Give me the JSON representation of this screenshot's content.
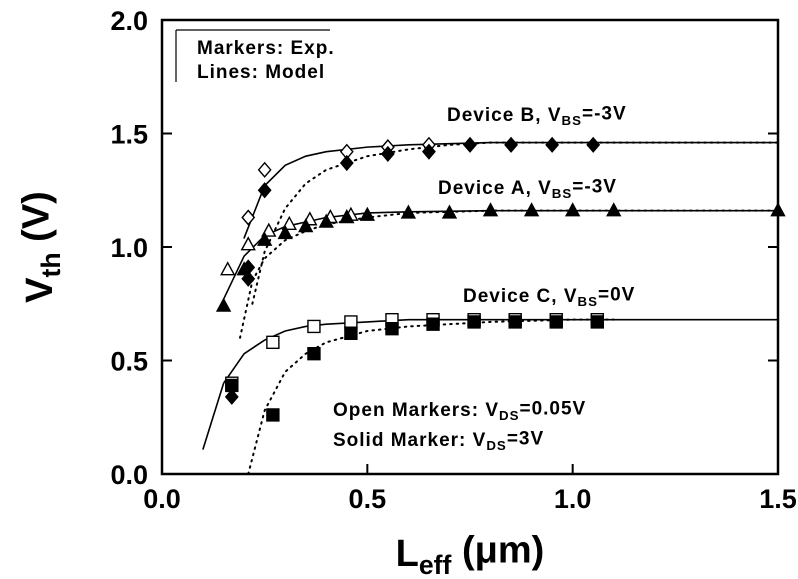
{
  "chart_data": {
    "type": "scatter",
    "xlabel": {
      "text": "L",
      "sub": "eff",
      "rest": " (μm)"
    },
    "ylabel": {
      "text": "V",
      "sub": "th",
      "rest": " (V)"
    },
    "xlim": [
      0,
      1.5
    ],
    "ylim": [
      0,
      2
    ],
    "xticks": [
      {
        "value": 0,
        "label": "0.0"
      },
      0.5,
      {
        "value": 1,
        "label": "1.0"
      },
      1.5
    ],
    "yticks": [
      {
        "value": 0,
        "label": "0.0"
      },
      0.5,
      {
        "value": 1,
        "label": "1.0"
      },
      1.5,
      {
        "value": 2,
        "label": "2.0"
      }
    ],
    "annotations": [
      {
        "text": "Markers: Exp."
      },
      {
        "text": "Lines: Model"
      },
      {
        "text": "Device B, V",
        "sub": "BS",
        "rest": "=-3V"
      },
      {
        "text": "Device A, V",
        "sub": "BS",
        "rest": "=-3V"
      },
      {
        "text": "Device C, V",
        "sub": "BS",
        "rest": "=0V"
      },
      {
        "text": "Open Markers: V",
        "sub": "DS",
        "rest": "=0.05V"
      },
      {
        "text": "Solid Marker: V",
        "sub": "DS",
        "rest": "=3V"
      }
    ],
    "series": [
      {
        "color": "#000",
        "marker": "diamond",
        "filled": false,
        "x": [
          0.21,
          0.25,
          0.45,
          0.55,
          0.65
        ],
        "values": [
          1.13,
          1.34,
          1.42,
          1.44,
          1.45
        ]
      },
      {
        "color": "#000",
        "marker": "diamond",
        "filled": true,
        "x": [
          0.17,
          0.21,
          0.21,
          0.25,
          0.45,
          0.55,
          0.65,
          0.75,
          0.85,
          0.95,
          1.05
        ],
        "values": [
          0.34,
          0.91,
          0.86,
          1.25,
          1.37,
          1.41,
          1.42,
          1.45,
          1.45,
          1.45,
          1.45
        ]
      },
      {
        "color": "#000",
        "marker": "triangle",
        "filled": false,
        "x": [
          0.16,
          0.21,
          0.26,
          0.31,
          0.36,
          0.41,
          0.46
        ],
        "values": [
          0.9,
          1.01,
          1.07,
          1.1,
          1.12,
          1.13,
          1.14
        ]
      },
      {
        "color": "#000",
        "marker": "triangle",
        "filled": true,
        "x": [
          0.15,
          0.2,
          0.25,
          0.3,
          0.35,
          0.4,
          0.45,
          0.5,
          0.6,
          0.7,
          0.8,
          0.9,
          1.0,
          1.1,
          1.5
        ],
        "values": [
          0.74,
          0.9,
          1.03,
          1.06,
          1.09,
          1.11,
          1.13,
          1.14,
          1.15,
          1.15,
          1.16,
          1.16,
          1.16,
          1.16,
          1.16
        ]
      },
      {
        "color": "#000",
        "marker": "square",
        "filled": false,
        "x": [
          0.17,
          0.27,
          0.37,
          0.46,
          0.56,
          0.66,
          0.76,
          0.86,
          0.96,
          1.06
        ],
        "values": [
          0.4,
          0.58,
          0.65,
          0.67,
          0.68,
          0.68,
          0.68,
          0.68,
          0.68,
          0.68
        ]
      },
      {
        "color": "#000",
        "marker": "square",
        "filled": true,
        "x": [
          0.17,
          0.27,
          0.37,
          0.46,
          0.56,
          0.66,
          0.76,
          0.86,
          0.96,
          1.06
        ],
        "values": [
          0.39,
          0.26,
          0.53,
          0.62,
          0.64,
          0.66,
          0.67,
          0.67,
          0.67,
          0.67
        ]
      },
      {
        "color": "#000",
        "line": "solid",
        "x": [
          0.2,
          0.25,
          0.3,
          0.35,
          0.4,
          0.5,
          0.6,
          0.8,
          1.0,
          1.5
        ],
        "values": [
          1.04,
          1.27,
          1.36,
          1.4,
          1.42,
          1.44,
          1.45,
          1.46,
          1.46,
          1.46
        ]
      },
      {
        "color": "#000",
        "line": "dotted",
        "x": [
          0.22,
          0.25,
          0.3,
          0.35,
          0.4,
          0.5,
          0.6,
          0.7,
          0.8,
          1.0,
          1.5
        ],
        "values": [
          0.75,
          0.98,
          1.17,
          1.28,
          1.34,
          1.4,
          1.43,
          1.45,
          1.46,
          1.46,
          1.46
        ]
      },
      {
        "color": "#000",
        "line": "solid",
        "x": [
          0.15,
          0.2,
          0.25,
          0.3,
          0.35,
          0.4,
          0.5,
          0.6,
          0.8,
          1.0,
          1.5
        ],
        "values": [
          0.77,
          0.96,
          1.05,
          1.09,
          1.11,
          1.13,
          1.15,
          1.155,
          1.16,
          1.16,
          1.16
        ]
      },
      {
        "color": "#000",
        "line": "dotted",
        "x": [
          0.19,
          0.22,
          0.25,
          0.3,
          0.35,
          0.4,
          0.5,
          0.6,
          0.8,
          1.5
        ],
        "values": [
          0.6,
          0.85,
          0.95,
          1.03,
          1.07,
          1.1,
          1.13,
          1.15,
          1.16,
          1.16
        ]
      },
      {
        "color": "#000",
        "line": "solid",
        "x": [
          0.1,
          0.15,
          0.2,
          0.25,
          0.3,
          0.35,
          0.4,
          0.5,
          0.6,
          0.8,
          1.0,
          1.5
        ],
        "values": [
          0.11,
          0.4,
          0.53,
          0.59,
          0.63,
          0.65,
          0.66,
          0.67,
          0.68,
          0.68,
          0.68,
          0.68
        ]
      },
      {
        "color": "#000",
        "line": "dotted",
        "x": [
          0.21,
          0.25,
          0.3,
          0.35,
          0.4,
          0.5,
          0.6,
          0.8,
          1.0,
          1.1
        ],
        "values": [
          0.0,
          0.28,
          0.45,
          0.53,
          0.58,
          0.63,
          0.65,
          0.67,
          0.68,
          0.68
        ]
      }
    ]
  }
}
